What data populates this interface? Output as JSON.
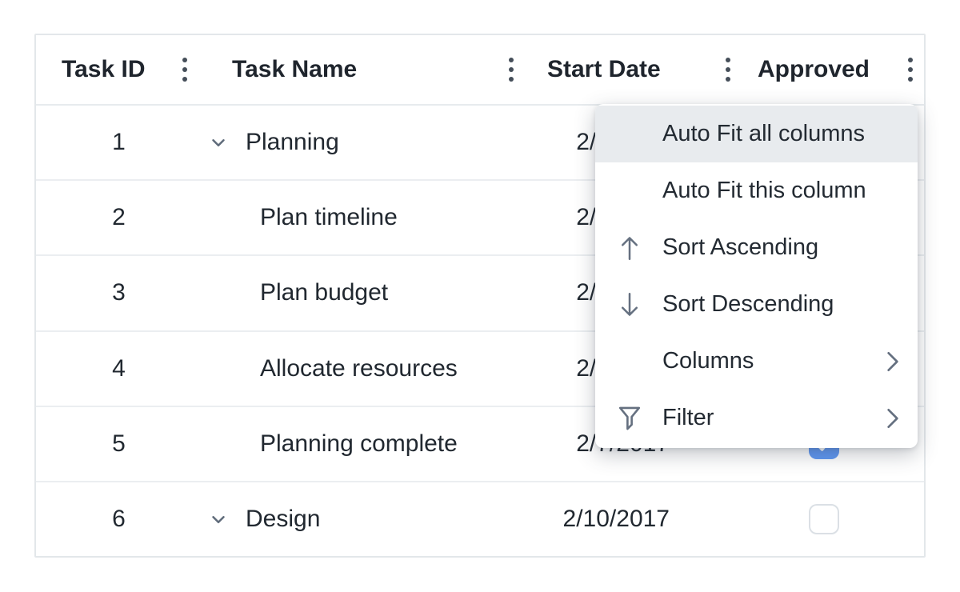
{
  "grid": {
    "columns": [
      {
        "label": "Task ID"
      },
      {
        "label": "Task Name"
      },
      {
        "label": "Start Date"
      },
      {
        "label": "Approved"
      }
    ],
    "rows": [
      {
        "id": "1",
        "name": "Planning",
        "level": 0,
        "expandable": true,
        "expanded": true,
        "date": "2/3/2017",
        "approved": null
      },
      {
        "id": "2",
        "name": "Plan timeline",
        "level": 1,
        "expandable": false,
        "expanded": false,
        "date": "2/3/2017",
        "approved": null
      },
      {
        "id": "3",
        "name": "Plan budget",
        "level": 1,
        "expandable": false,
        "expanded": false,
        "date": "2/3/2017",
        "approved": null
      },
      {
        "id": "4",
        "name": "Allocate resources",
        "level": 1,
        "expandable": false,
        "expanded": false,
        "date": "2/3/2017",
        "approved": null
      },
      {
        "id": "5",
        "name": "Planning complete",
        "level": 1,
        "expandable": false,
        "expanded": false,
        "date": "2/7/2017",
        "approved": true
      },
      {
        "id": "6",
        "name": "Design",
        "level": 0,
        "expandable": true,
        "expanded": true,
        "date": "2/10/2017",
        "approved": false
      }
    ]
  },
  "column_menu": {
    "items": [
      {
        "label": "Auto Fit all columns",
        "icon": null,
        "submenu": false,
        "highlighted": true
      },
      {
        "label": "Auto Fit this column",
        "icon": null,
        "submenu": false,
        "highlighted": false
      },
      {
        "label": "Sort Ascending",
        "icon": "arrow-up",
        "submenu": false,
        "highlighted": false
      },
      {
        "label": "Sort Descending",
        "icon": "arrow-down",
        "submenu": false,
        "highlighted": false
      },
      {
        "label": "Columns",
        "icon": null,
        "submenu": true,
        "highlighted": false
      },
      {
        "label": "Filter",
        "icon": "filter",
        "submenu": true,
        "highlighted": false
      }
    ]
  },
  "colors": {
    "checkbox_checked": "#5e97f2",
    "menu_highlight": "#e8ebee",
    "grid_border": "#e3e7ea",
    "row_divider": "#ebeef1",
    "text": "#212830",
    "icon": "#657080"
  }
}
